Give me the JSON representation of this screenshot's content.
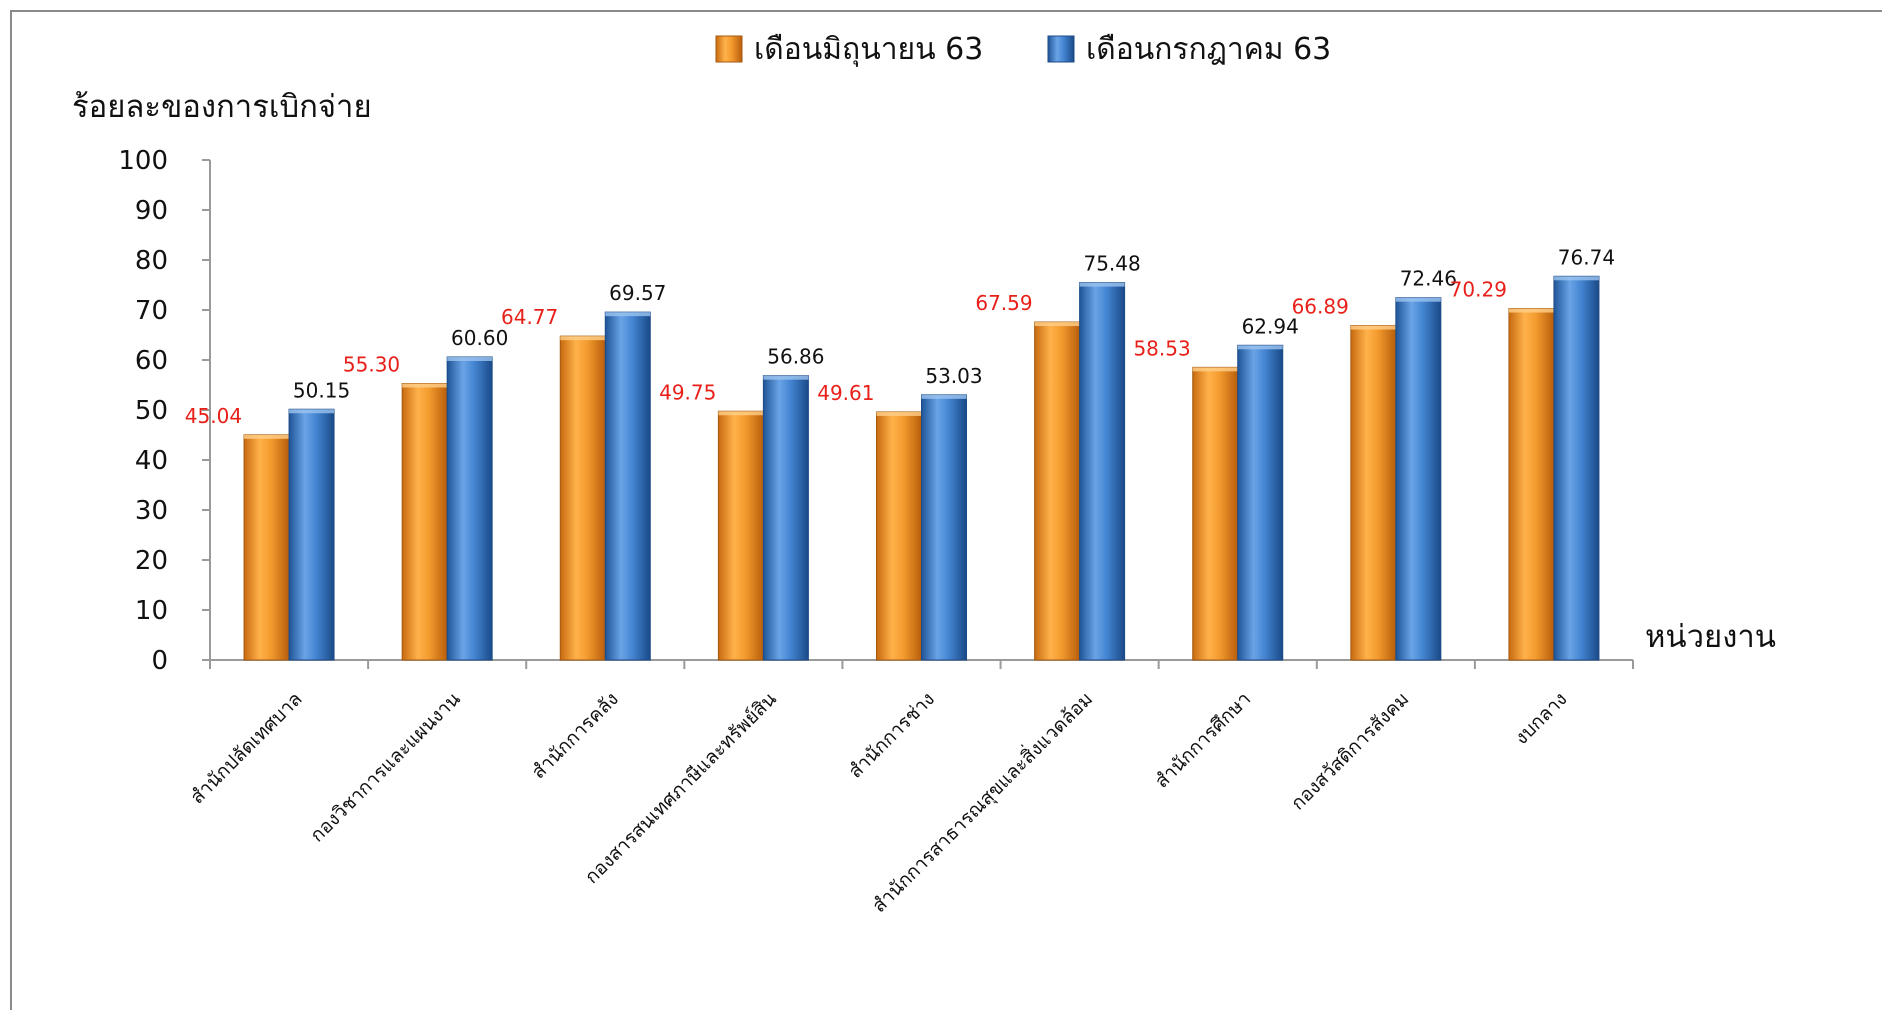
{
  "chart_data": {
    "type": "bar",
    "ylabel": "ร้อยละของการเบิกจ่าย",
    "xlabel": "หน่วยงาน",
    "ylim": [
      0,
      100
    ],
    "yticks": [
      0,
      10,
      20,
      30,
      40,
      50,
      60,
      70,
      80,
      90,
      100
    ],
    "legend_position": "top-center",
    "categories": [
      "สำนักปลัดเทศบาล",
      "กองวิชาการและแผนงาน",
      "สำนักการคลัง",
      "กองสารสนเทศภาษีและทรัพย์สิน",
      "สำนักการช่าง",
      "สำนักการสาธารณสุขและสิ่งแวดล้อม",
      "สำนักการศึกษา",
      "กองสวัสดิการสังคม",
      "งบกลาง"
    ],
    "series": [
      {
        "name": "เดือนมิถุนายน 63",
        "color": "#f0902a",
        "label_color": "#e8201a",
        "values": [
          45.04,
          55.3,
          64.77,
          49.75,
          49.61,
          67.59,
          58.53,
          66.89,
          70.29
        ],
        "labels": [
          "45.04",
          "55.30",
          "64.77",
          "49.75",
          "49.61",
          "67.59",
          "58.53",
          "66.89",
          "70.29"
        ]
      },
      {
        "name": "เดือนกรกฎาคม 63",
        "color": "#3d7ec9",
        "label_color": "#111111",
        "values": [
          50.15,
          60.6,
          69.57,
          56.86,
          53.03,
          75.48,
          62.94,
          72.46,
          76.74
        ],
        "labels": [
          "50.15",
          "60.60",
          "69.57",
          "56.86",
          "53.03",
          "75.48",
          "62.94",
          "72.46",
          "76.74"
        ]
      }
    ]
  }
}
